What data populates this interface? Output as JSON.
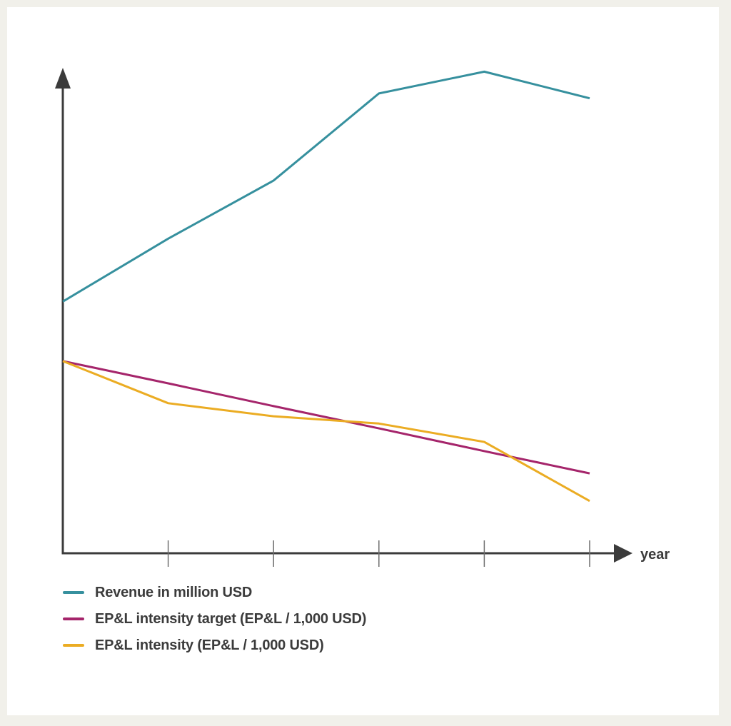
{
  "background": {
    "outer": "#F1F0EA",
    "panel": "#FFFFFF"
  },
  "axis": {
    "x_label": "year",
    "color": "#3B3B3B",
    "tick_color": "#6E6E6E",
    "tick_count": 5,
    "y_tick_labels_shown": false,
    "x_tick_labels_shown": false
  },
  "legend": {
    "items": [
      {
        "label": "Revenue in million USD",
        "color": "#36909E"
      },
      {
        "label": "EP&L intensity target (EP&L / 1,000 USD)",
        "color": "#A5256B"
      },
      {
        "label": "EP&L intensity (EP&L / 1,000 USD)",
        "color": "#EBAC23"
      }
    ]
  },
  "chart_data": {
    "type": "line",
    "title": "",
    "xlabel": "year",
    "ylabel": "",
    "x": [
      0,
      1,
      2,
      3,
      4,
      5
    ],
    "x_tick_labels": [
      "",
      "",
      "",
      "",
      "",
      ""
    ],
    "ylim": [
      0,
      100
    ],
    "grid": false,
    "legend_position": "bottom-left",
    "series": [
      {
        "name": "Revenue in million USD",
        "color": "#36909E",
        "values": [
          52,
          65,
          77,
          95,
          99.5,
          94
        ]
      },
      {
        "name": "EP&L intensity target (EP&L / 1,000 USD)",
        "color": "#A5256B",
        "values": [
          39.7,
          35.1,
          30.4,
          25.8,
          21.1,
          16.5
        ]
      },
      {
        "name": "EP&L intensity (EP&L / 1,000 USD)",
        "color": "#EBAC23",
        "values": [
          39.7,
          31,
          28.3,
          26.8,
          23,
          10.8
        ]
      }
    ]
  }
}
